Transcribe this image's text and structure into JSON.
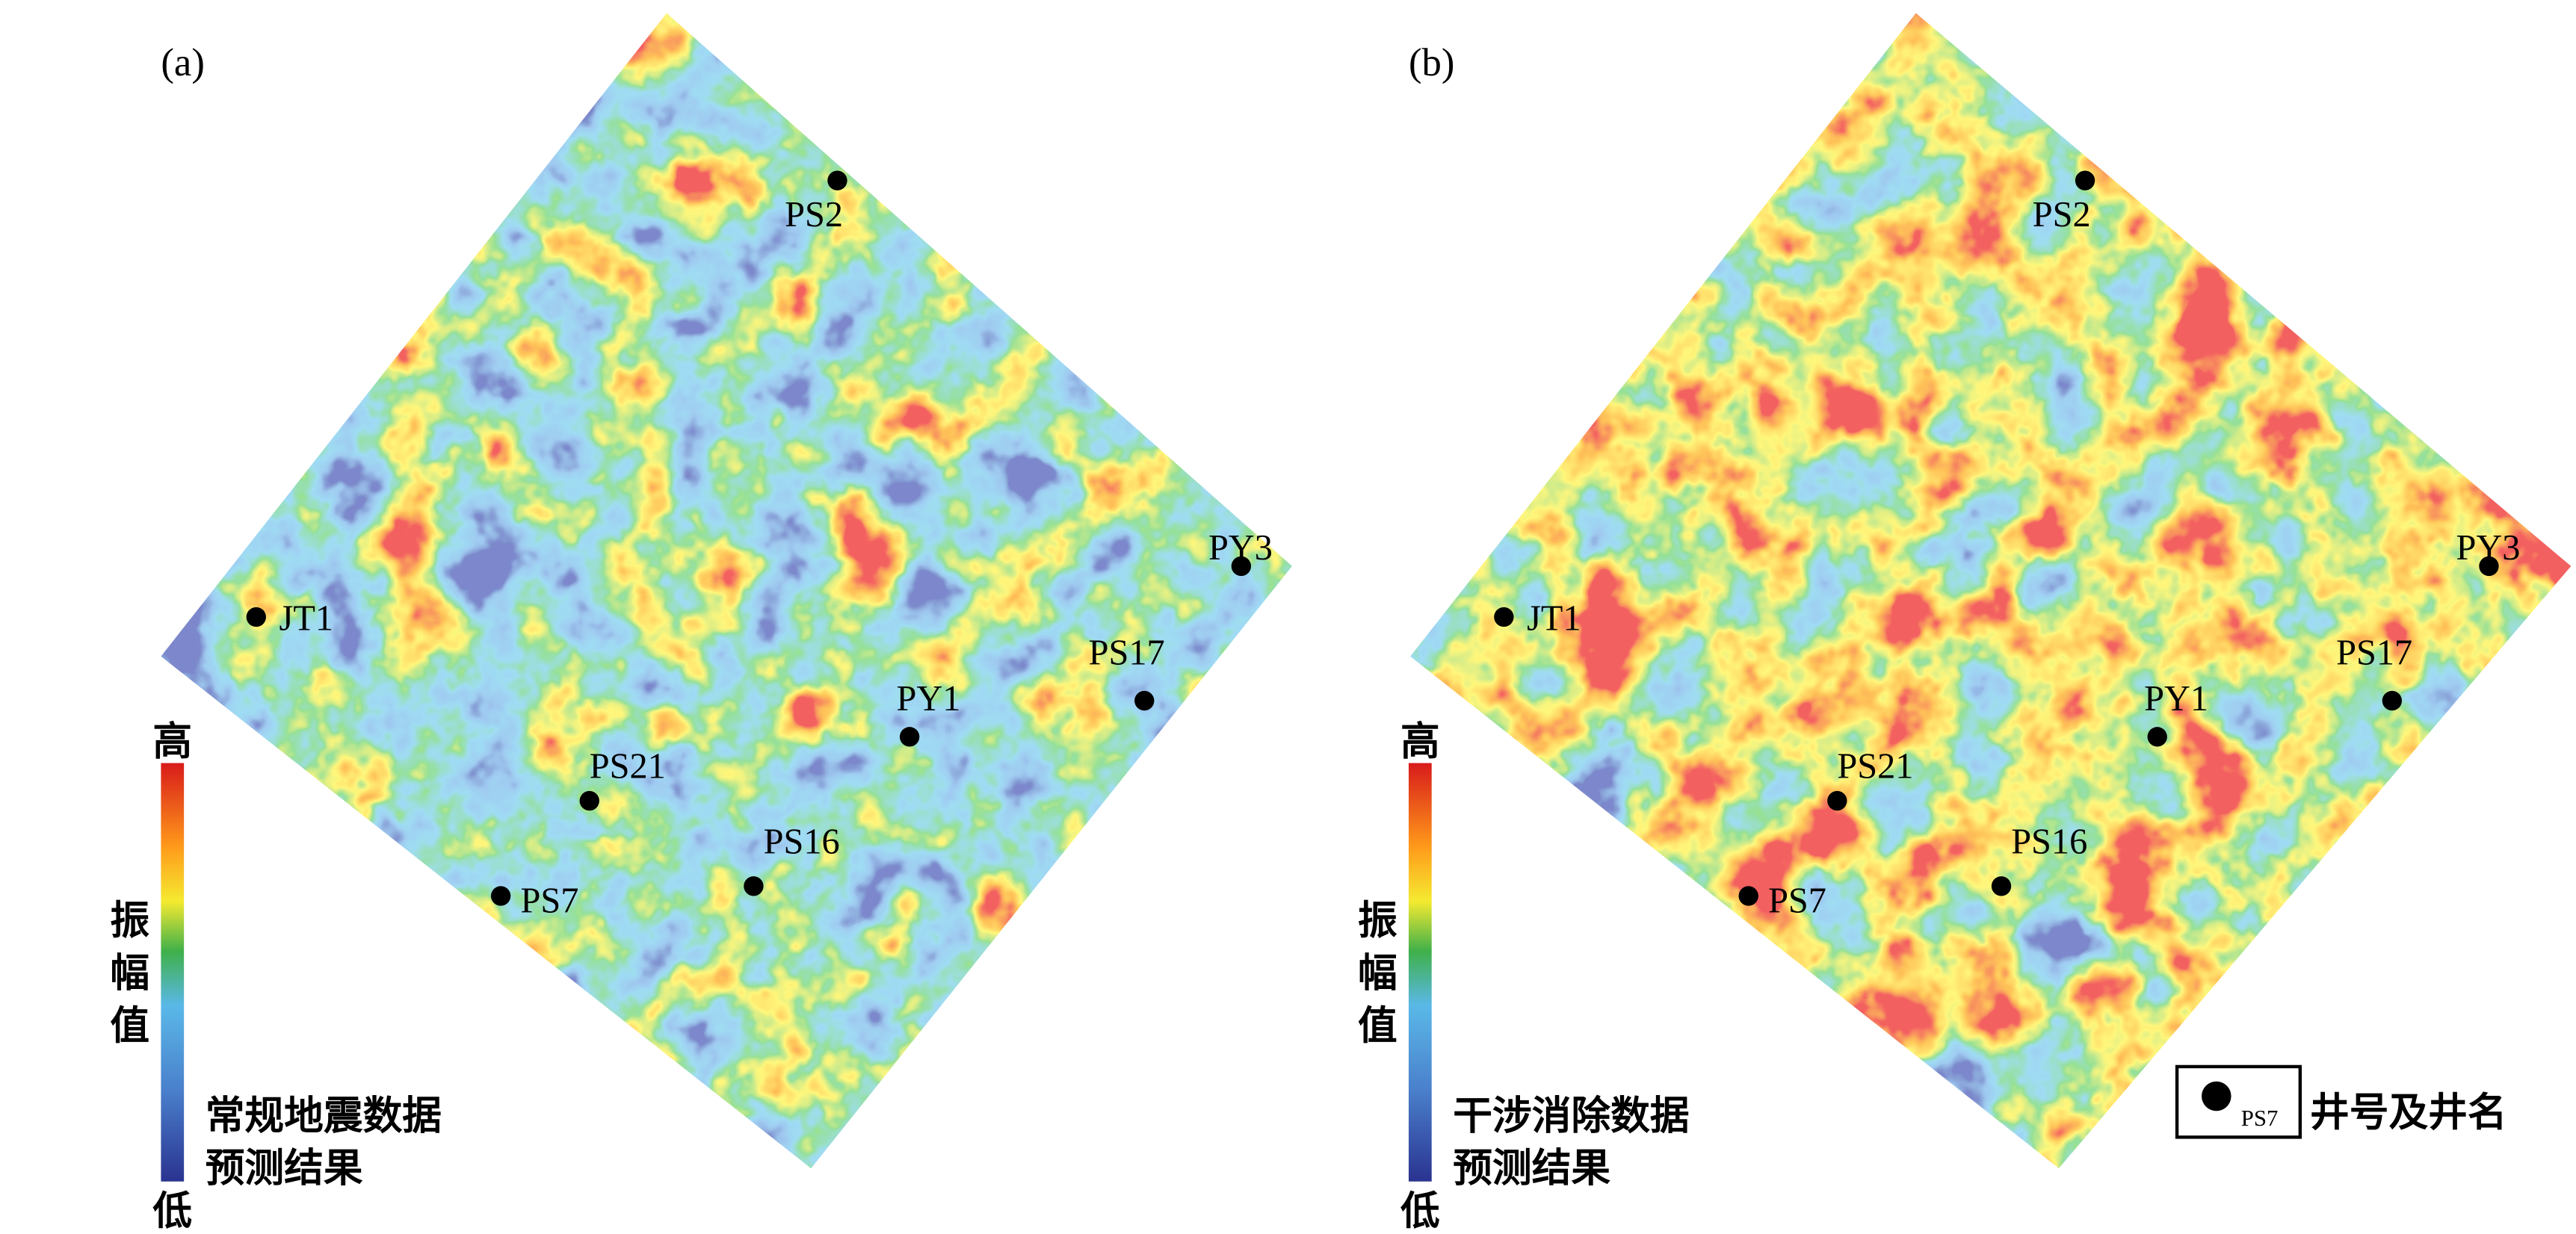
{
  "panels": [
    {
      "label": "(a)",
      "wells": [
        {
          "name": "PS2"
        },
        {
          "name": "PY3"
        },
        {
          "name": "JT1"
        },
        {
          "name": "PS17"
        },
        {
          "name": "PY1"
        },
        {
          "name": "PS21"
        },
        {
          "name": "PS16"
        },
        {
          "name": "PS7"
        }
      ],
      "colorbar": {
        "high": "高",
        "title": "振幅值",
        "low": "低"
      },
      "caption": [
        "常规地震数据",
        "预测结果"
      ]
    },
    {
      "label": "(b)",
      "wells": [
        {
          "name": "PS2"
        },
        {
          "name": "PY3"
        },
        {
          "name": "JT1"
        },
        {
          "name": "PS17"
        },
        {
          "name": "PY1"
        },
        {
          "name": "PS21"
        },
        {
          "name": "PS16"
        },
        {
          "name": "PS7"
        }
      ],
      "colorbar": {
        "high": "高",
        "title": "振幅值",
        "low": "低"
      },
      "caption": [
        "干涉消除数据",
        "预测结果"
      ]
    }
  ],
  "legend": {
    "symbol_label": "PS7",
    "text": "井号及井名"
  }
}
